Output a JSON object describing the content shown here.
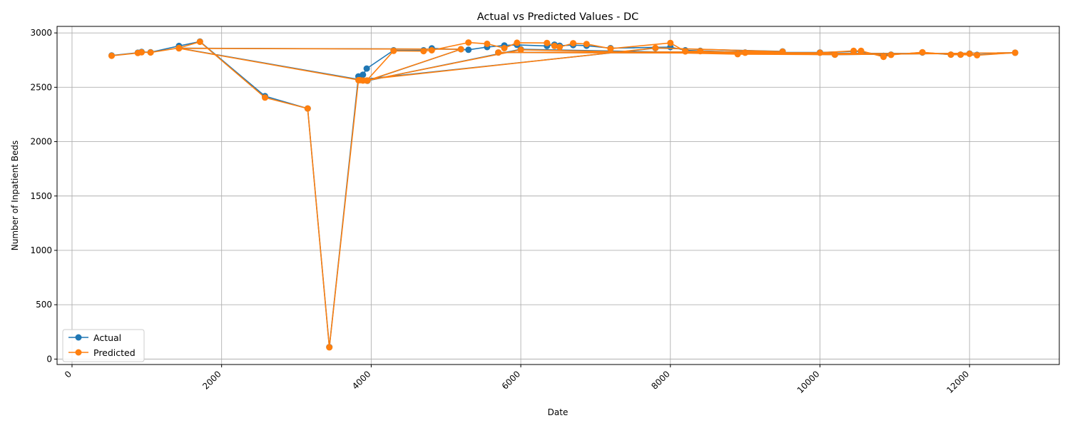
{
  "chart_data": {
    "type": "line",
    "title": "Actual vs Predicted Values - DC",
    "xlabel": "Date",
    "ylabel": "Number of Inpatient Beds",
    "xlim": [
      -200,
      13200
    ],
    "ylim": [
      -50,
      3060
    ],
    "xticks": [
      0,
      2000,
      4000,
      6000,
      8000,
      10000,
      12000
    ],
    "yticks": [
      0,
      500,
      1000,
      1500,
      2000,
      2500,
      3000
    ],
    "grid": true,
    "legend": "lower-left",
    "series": [
      {
        "name": "Actual",
        "color": "#1f77b4",
        "points": [
          [
            530,
            2792
          ],
          [
            880,
            2818
          ],
          [
            930,
            2825
          ],
          [
            1050,
            2822
          ],
          [
            1430,
            2880
          ],
          [
            1710,
            2920
          ],
          [
            2580,
            2418
          ],
          [
            3150,
            2305
          ],
          [
            3440,
            110
          ],
          [
            3830,
            2600
          ],
          [
            3890,
            2615
          ],
          [
            3940,
            2672
          ],
          [
            4300,
            2840
          ],
          [
            4700,
            2840
          ],
          [
            4810,
            2858
          ],
          [
            5300,
            2845
          ],
          [
            5550,
            2870
          ],
          [
            5780,
            2885
          ],
          [
            5950,
            2890
          ],
          [
            6350,
            2880
          ],
          [
            6450,
            2892
          ],
          [
            6520,
            2882
          ],
          [
            6700,
            2888
          ],
          [
            6880,
            2882
          ],
          [
            7200,
            2860
          ],
          [
            8000,
            2870
          ],
          [
            8200,
            2840
          ],
          [
            8400,
            2835
          ],
          [
            9000,
            2820
          ],
          [
            10000,
            2820
          ],
          [
            10450,
            2830
          ],
          [
            10550,
            2830
          ],
          [
            10850,
            2790
          ],
          [
            10950,
            2800
          ],
          [
            11370,
            2820
          ],
          [
            11750,
            2800
          ],
          [
            11880,
            2800
          ],
          [
            12100,
            2798
          ],
          [
            12610,
            2818
          ],
          [
            10200,
            2800
          ],
          [
            8900,
            2810
          ],
          [
            6000,
            2850
          ],
          [
            3950,
            2560
          ],
          [
            5200,
            2850
          ],
          [
            1430,
            2860
          ],
          [
            3850,
            2570
          ],
          [
            7800,
            2860
          ],
          [
            9500,
            2830
          ],
          [
            5700,
            2820
          ],
          [
            12000,
            2810
          ]
        ]
      },
      {
        "name": "Predicted",
        "color": "#ff7f0e",
        "points": [
          [
            530,
            2790
          ],
          [
            880,
            2815
          ],
          [
            930,
            2822
          ],
          [
            1050,
            2820
          ],
          [
            1430,
            2862
          ],
          [
            1710,
            2918
          ],
          [
            2580,
            2405
          ],
          [
            3150,
            2305
          ],
          [
            3440,
            108
          ],
          [
            3830,
            2565
          ],
          [
            3890,
            2562
          ],
          [
            3940,
            2562
          ],
          [
            4300,
            2835
          ],
          [
            4700,
            2832
          ],
          [
            4810,
            2840
          ],
          [
            5300,
            2912
          ],
          [
            5550,
            2900
          ],
          [
            5780,
            2860
          ],
          [
            5950,
            2910
          ],
          [
            6350,
            2908
          ],
          [
            6450,
            2880
          ],
          [
            6520,
            2870
          ],
          [
            6700,
            2905
          ],
          [
            6880,
            2898
          ],
          [
            7200,
            2855
          ],
          [
            8000,
            2908
          ],
          [
            8200,
            2830
          ],
          [
            8400,
            2832
          ],
          [
            9000,
            2818
          ],
          [
            10000,
            2818
          ],
          [
            10450,
            2835
          ],
          [
            10550,
            2835
          ],
          [
            10850,
            2780
          ],
          [
            10950,
            2798
          ],
          [
            11370,
            2822
          ],
          [
            11750,
            2800
          ],
          [
            11880,
            2800
          ],
          [
            12100,
            2795
          ],
          [
            12610,
            2818
          ],
          [
            10200,
            2800
          ],
          [
            8900,
            2805
          ],
          [
            6000,
            2845
          ],
          [
            3950,
            2562
          ],
          [
            5200,
            2850
          ],
          [
            1430,
            2858
          ],
          [
            3850,
            2565
          ],
          [
            7800,
            2862
          ],
          [
            9500,
            2828
          ],
          [
            5700,
            2820
          ],
          [
            12000,
            2808
          ]
        ]
      }
    ]
  }
}
